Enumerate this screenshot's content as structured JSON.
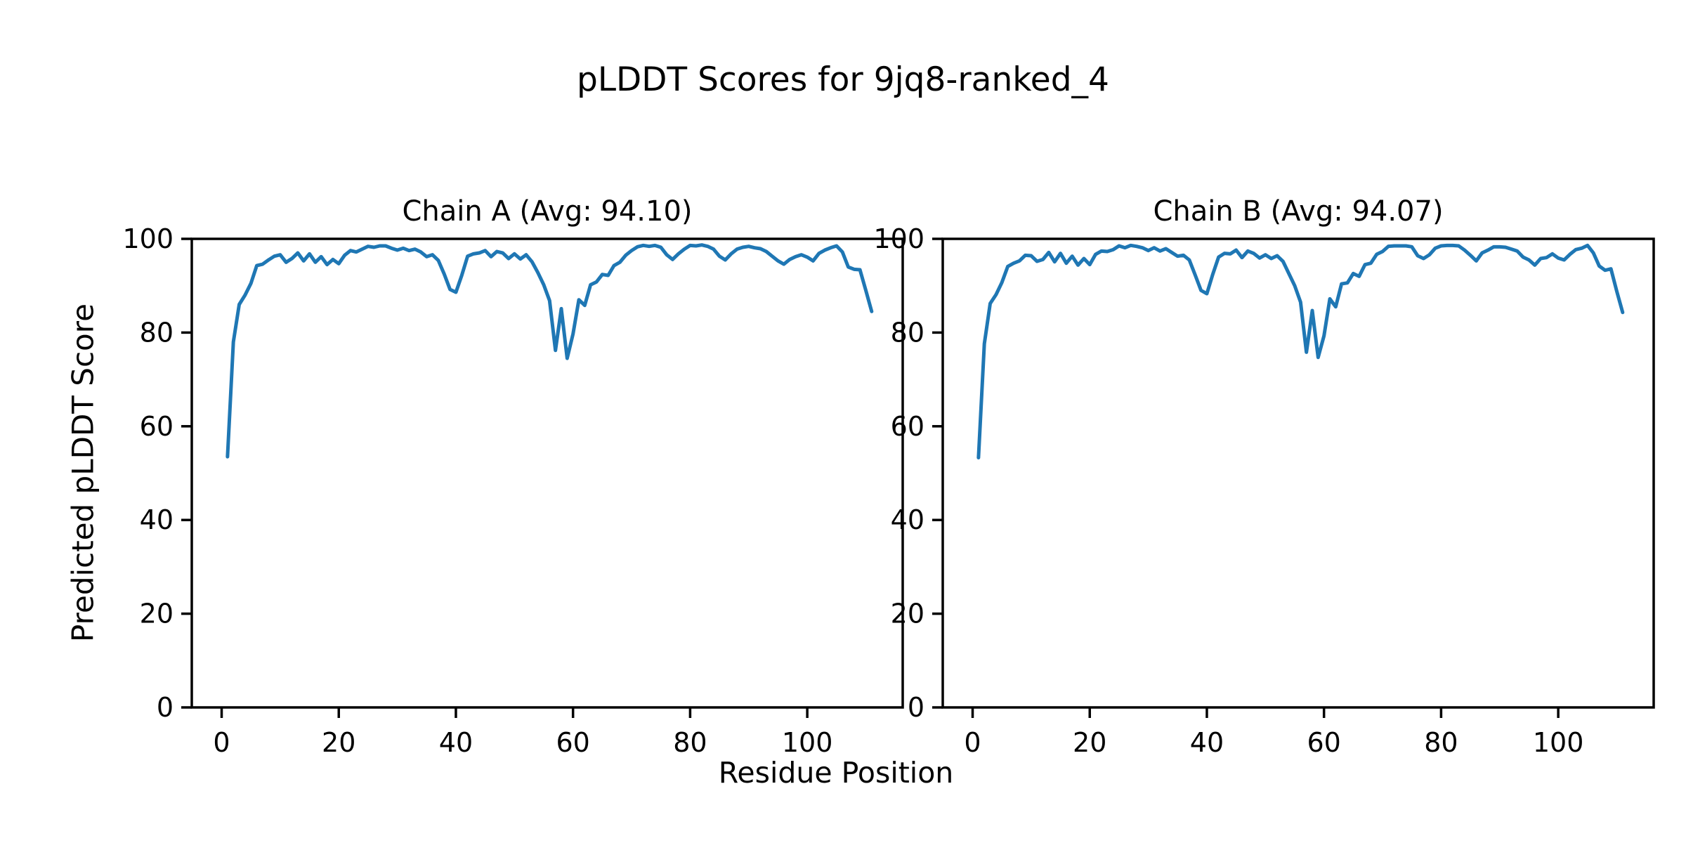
{
  "figure": {
    "title": "pLDDT Scores for 9jq8-ranked_4",
    "xlabel": "Residue Position",
    "ylabel": "Predicted pLDDT Score",
    "background_color": "#ffffff",
    "text_color": "#000000",
    "axis_color": "#000000",
    "line_color": "#1f77b4"
  },
  "chart_data": [
    {
      "type": "line",
      "title": "Chain A (Avg: 94.10)",
      "chain": "A",
      "average_plddt": "94.10",
      "xlabel": "Residue Position",
      "ylabel": "Predicted pLDDT Score",
      "x_start": 1,
      "xlim": [
        -5.1,
        116.3
      ],
      "ylim": [
        0,
        100
      ],
      "xticks": [
        0,
        20,
        40,
        60,
        80,
        100
      ],
      "yticks": [
        0,
        20,
        40,
        60,
        80,
        100
      ],
      "grid": false,
      "legend": "none",
      "series": [
        {
          "name": "Chain A pLDDT",
          "color": "#1f77b4",
          "values": [
            53.5,
            78.0,
            86.0,
            88.0,
            90.5,
            94.3,
            94.6,
            95.5,
            96.3,
            96.6,
            95.0,
            95.8,
            97.0,
            95.3,
            96.8,
            95.0,
            96.2,
            94.5,
            95.6,
            94.7,
            96.5,
            97.5,
            97.2,
            97.8,
            98.4,
            98.2,
            98.5,
            98.5,
            98.0,
            97.6,
            98.0,
            97.5,
            97.8,
            97.2,
            96.2,
            96.6,
            95.4,
            92.5,
            89.2,
            88.6,
            92.2,
            96.3,
            96.8,
            97.0,
            97.5,
            96.2,
            97.3,
            97.0,
            95.8,
            96.8,
            95.7,
            96.6,
            95.1,
            92.8,
            90.2,
            86.8,
            76.2,
            85.1,
            74.5,
            79.7,
            87.0,
            85.8,
            90.2,
            90.8,
            92.4,
            92.2,
            94.3,
            95.0,
            96.5,
            97.5,
            98.3,
            98.6,
            98.4,
            98.6,
            98.2,
            96.6,
            95.6,
            96.8,
            97.8,
            98.6,
            98.5,
            98.7,
            98.4,
            97.8,
            96.3,
            95.5,
            96.8,
            97.8,
            98.2,
            98.4,
            98.1,
            97.9,
            97.3,
            96.3,
            95.3,
            94.6,
            95.6,
            96.2,
            96.6,
            96.1,
            95.3,
            96.9,
            97.6,
            98.1,
            98.5,
            97.2,
            94.0,
            93.5,
            93.4,
            89.0,
            84.5
          ]
        }
      ]
    },
    {
      "type": "line",
      "title": "Chain B (Avg: 94.07)",
      "chain": "B",
      "average_plddt": "94.07",
      "xlabel": "Residue Position",
      "ylabel": "Predicted pLDDT Score",
      "x_start": 1,
      "xlim": [
        -5.1,
        116.3
      ],
      "ylim": [
        0,
        100
      ],
      "xticks": [
        0,
        20,
        40,
        60,
        80,
        100
      ],
      "yticks": [
        0,
        20,
        40,
        60,
        80,
        100
      ],
      "grid": false,
      "legend": "none",
      "series": [
        {
          "name": "Chain B pLDDT",
          "color": "#1f77b4",
          "values": [
            53.3,
            77.6,
            86.2,
            88.1,
            90.7,
            94.1,
            94.8,
            95.3,
            96.5,
            96.4,
            95.2,
            95.6,
            97.1,
            95.1,
            96.9,
            94.8,
            96.3,
            94.4,
            95.8,
            94.5,
            96.7,
            97.4,
            97.3,
            97.7,
            98.5,
            98.1,
            98.6,
            98.4,
            98.1,
            97.5,
            98.1,
            97.4,
            97.9,
            97.1,
            96.3,
            96.5,
            95.5,
            92.3,
            89.0,
            88.3,
            92.4,
            96.1,
            96.9,
            96.8,
            97.6,
            96.0,
            97.4,
            96.9,
            95.9,
            96.6,
            95.8,
            96.4,
            95.2,
            92.6,
            90.0,
            86.5,
            75.8,
            84.7,
            74.7,
            79.3,
            87.2,
            85.5,
            90.4,
            90.6,
            92.6,
            92.0,
            94.5,
            94.8,
            96.7,
            97.3,
            98.4,
            98.5,
            98.5,
            98.5,
            98.3,
            96.4,
            95.8,
            96.6,
            98.0,
            98.5,
            98.6,
            98.6,
            98.5,
            97.6,
            96.5,
            95.3,
            97.0,
            97.6,
            98.3,
            98.3,
            98.2,
            97.8,
            97.4,
            96.1,
            95.5,
            94.4,
            95.8,
            96.0,
            96.8,
            95.9,
            95.5,
            96.7,
            97.7,
            98.0,
            98.6,
            97.0,
            94.2,
            93.3,
            93.6,
            88.8,
            84.3
          ]
        }
      ]
    }
  ]
}
